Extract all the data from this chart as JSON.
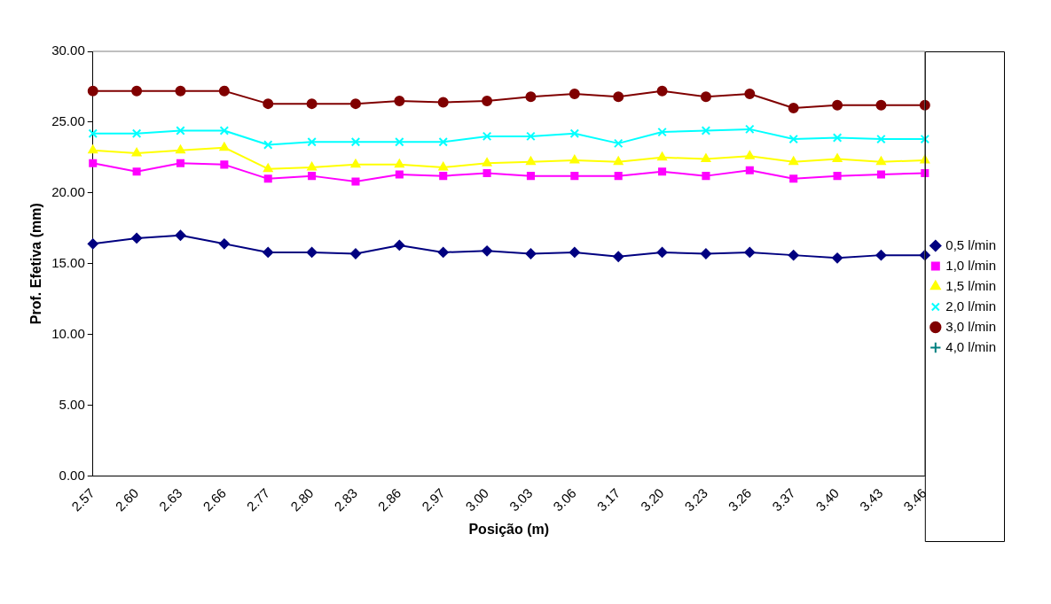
{
  "chart_data": {
    "type": "line",
    "xlabel": "Posição (m)",
    "ylabel": "Prof. Efetiva (mm)",
    "categories": [
      "2.57",
      "2.60",
      "2.63",
      "2.66",
      "2.77",
      "2.80",
      "2.83",
      "2.86",
      "2.97",
      "3.00",
      "3.03",
      "3.06",
      "3.17",
      "3.20",
      "3.23",
      "3.26",
      "3.37",
      "3.40",
      "3.43",
      "3.46"
    ],
    "series": [
      {
        "name": "0,5 l/min",
        "color": "#000080",
        "marker": "diamond",
        "values": [
          16.4,
          16.8,
          17.0,
          16.4,
          15.8,
          15.8,
          15.7,
          16.3,
          15.8,
          15.9,
          15.7,
          15.8,
          15.5,
          15.8,
          15.7,
          15.8,
          15.6,
          15.4,
          15.6,
          15.6
        ]
      },
      {
        "name": "1,0 l/min",
        "color": "#ff00ff",
        "marker": "square",
        "values": [
          22.1,
          21.5,
          22.1,
          22.0,
          21.0,
          21.2,
          20.8,
          21.3,
          21.2,
          21.4,
          21.2,
          21.2,
          21.2,
          21.5,
          21.2,
          21.6,
          21.0,
          21.2,
          21.3,
          21.4
        ]
      },
      {
        "name": "1,5 l/min",
        "color": "#ffff00",
        "marker": "triangle",
        "values": [
          23.0,
          22.8,
          23.0,
          23.2,
          21.7,
          21.8,
          22.0,
          22.0,
          21.8,
          22.1,
          22.2,
          22.3,
          22.2,
          22.5,
          22.4,
          22.6,
          22.2,
          22.4,
          22.2,
          22.3
        ]
      },
      {
        "name": "2,0 l/min",
        "color": "#00ffff",
        "marker": "cross",
        "values": [
          24.2,
          24.2,
          24.4,
          24.4,
          23.4,
          23.6,
          23.6,
          23.6,
          23.6,
          24.0,
          24.0,
          24.2,
          23.5,
          24.3,
          24.4,
          24.5,
          23.8,
          23.9,
          23.8,
          23.8
        ]
      },
      {
        "name": "3,0 l/min",
        "color": "#800000",
        "marker": "circle",
        "values": [
          27.2,
          27.2,
          27.2,
          27.2,
          26.3,
          26.3,
          26.3,
          26.5,
          26.4,
          26.5,
          26.8,
          27.0,
          26.8,
          27.2,
          26.8,
          27.0,
          26.0,
          26.2,
          26.2,
          26.2
        ]
      },
      {
        "name": "4,0 l/min",
        "color": "#008080",
        "marker": "plus",
        "values": [
          null,
          null,
          null,
          null,
          null,
          null,
          null,
          null,
          null,
          null,
          null,
          null,
          null,
          null,
          null,
          null,
          null,
          null,
          null,
          null
        ]
      }
    ],
    "ylim": [
      0,
      30
    ],
    "yticks": [
      {
        "value": 0,
        "label": "0.00"
      },
      {
        "value": 5,
        "label": "5.00"
      },
      {
        "value": 10,
        "label": "10.00"
      },
      {
        "value": 15,
        "label": "15.00"
      },
      {
        "value": 20,
        "label": "20.00"
      },
      {
        "value": 25,
        "label": "25.00"
      },
      {
        "value": 30,
        "label": "30.00"
      }
    ],
    "grid": false,
    "legend": "right"
  }
}
